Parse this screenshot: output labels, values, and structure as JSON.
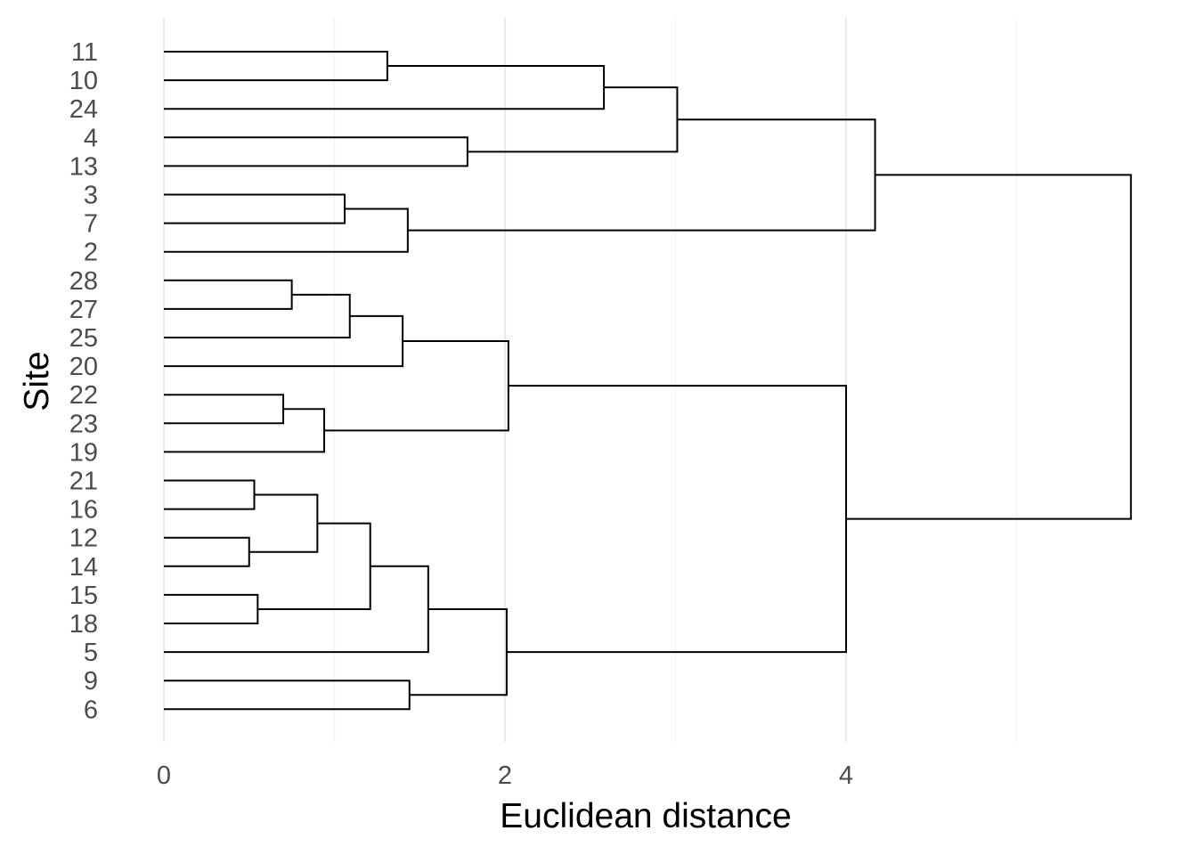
{
  "chart_data": {
    "type": "dendrogram",
    "orientation": "horizontal",
    "xlabel": "Euclidean distance",
    "ylabel": "Site",
    "xlim": [
      0,
      5.7
    ],
    "x_ticks": [
      0,
      2,
      4
    ],
    "x_minor_ticks": [
      1,
      3,
      5
    ],
    "grid": true,
    "leaves": [
      "11",
      "10",
      "24",
      "4",
      "13",
      "3",
      "7",
      "2",
      "28",
      "27",
      "25",
      "20",
      "22",
      "23",
      "19",
      "21",
      "16",
      "12",
      "14",
      "15",
      "18",
      "5",
      "9",
      "6"
    ],
    "merges": [
      {
        "id": "m1",
        "left": "11",
        "right": "10",
        "height": 1.31
      },
      {
        "id": "m2",
        "left": "m1",
        "right": "24",
        "height": 2.58
      },
      {
        "id": "m3",
        "left": "4",
        "right": "13",
        "height": 1.78
      },
      {
        "id": "m4",
        "left": "m2",
        "right": "m3",
        "height": 3.01
      },
      {
        "id": "m5",
        "left": "3",
        "right": "7",
        "height": 1.06
      },
      {
        "id": "m6",
        "left": "m5",
        "right": "2",
        "height": 1.43
      },
      {
        "id": "m7",
        "left": "m4",
        "right": "m6",
        "height": 4.17
      },
      {
        "id": "m8",
        "left": "28",
        "right": "27",
        "height": 0.75
      },
      {
        "id": "m9",
        "left": "m8",
        "right": "25",
        "height": 1.09
      },
      {
        "id": "m10",
        "left": "m9",
        "right": "20",
        "height": 1.4
      },
      {
        "id": "m11",
        "left": "22",
        "right": "23",
        "height": 0.7
      },
      {
        "id": "m12",
        "left": "m11",
        "right": "19",
        "height": 0.94
      },
      {
        "id": "m13",
        "left": "m10",
        "right": "m12",
        "height": 2.02
      },
      {
        "id": "m14",
        "left": "21",
        "right": "16",
        "height": 0.53
      },
      {
        "id": "m15",
        "left": "12",
        "right": "14",
        "height": 0.5
      },
      {
        "id": "m16",
        "left": "m14",
        "right": "m15",
        "height": 0.9
      },
      {
        "id": "m17",
        "left": "15",
        "right": "18",
        "height": 0.55
      },
      {
        "id": "m18",
        "left": "m16",
        "right": "m17",
        "height": 1.21
      },
      {
        "id": "m19",
        "left": "m18",
        "right": "5",
        "height": 1.55
      },
      {
        "id": "m20",
        "left": "9",
        "right": "6",
        "height": 1.44
      },
      {
        "id": "m21",
        "left": "m19",
        "right": "m20",
        "height": 2.01
      },
      {
        "id": "m22",
        "left": "m13",
        "right": "m21",
        "height": 4.0
      },
      {
        "id": "m23",
        "left": "m7",
        "right": "m22",
        "height": 5.67
      }
    ]
  }
}
